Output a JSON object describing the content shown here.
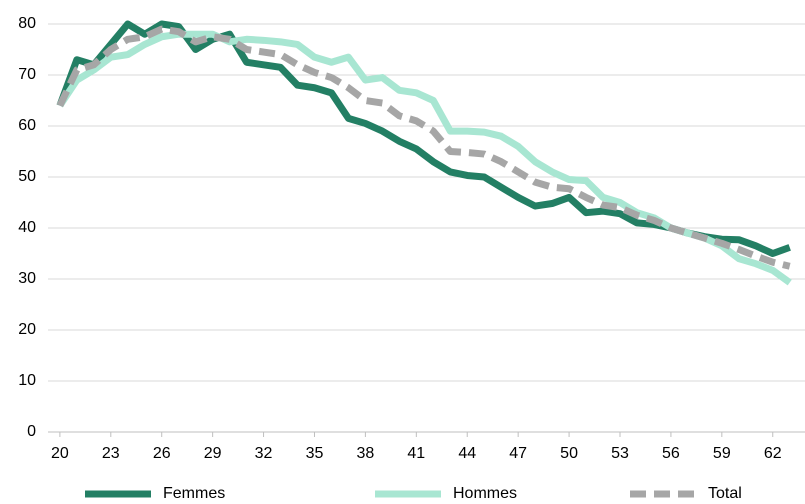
{
  "chart_data": {
    "type": "line",
    "x": [
      20,
      21,
      22,
      23,
      24,
      25,
      26,
      27,
      28,
      29,
      30,
      31,
      32,
      33,
      34,
      35,
      36,
      37,
      38,
      39,
      40,
      41,
      42,
      43,
      44,
      45,
      46,
      47,
      48,
      49,
      50,
      51,
      52,
      53,
      54,
      55,
      56,
      57,
      58,
      59,
      60,
      61,
      62,
      63
    ],
    "series": [
      {
        "name": "Femmes",
        "color": "#237f64",
        "line_style": "solid",
        "values": [
          64,
          73,
          72,
          76,
          80,
          78,
          80,
          79.5,
          75,
          77,
          78,
          72.5,
          72,
          71.5,
          68,
          67.5,
          66.5,
          61.5,
          60.5,
          59,
          57,
          55.5,
          53,
          51,
          50.3,
          50,
          48,
          46,
          44.3,
          44.8,
          46,
          43,
          43.3,
          42.8,
          41,
          40.7,
          40,
          39,
          38.3,
          37.8,
          37.7,
          36.5,
          35,
          36.2
        ]
      },
      {
        "name": "Hommes",
        "color": "#a8e6d2",
        "line_style": "solid",
        "values": [
          64,
          69,
          71,
          73.5,
          74,
          76,
          77.5,
          78,
          78,
          78,
          76.5,
          77,
          76.8,
          76.5,
          76,
          73.5,
          72.5,
          73.5,
          69,
          69.5,
          67,
          66.5,
          65,
          59,
          59,
          58.8,
          58,
          56,
          53,
          51,
          49.5,
          49.3,
          46,
          45,
          43,
          42,
          40,
          39,
          38,
          36.5,
          34,
          33,
          31.7,
          29.3
        ]
      },
      {
        "name": "Total",
        "color": "#a6a6a6",
        "line_style": "dashed",
        "values": [
          64,
          71,
          72,
          75,
          77,
          77.5,
          79,
          78.5,
          76.5,
          77.5,
          77,
          75,
          74.5,
          74,
          72,
          70.5,
          69.5,
          67.5,
          65,
          64.5,
          62,
          61,
          59,
          55,
          54.8,
          54.5,
          53,
          51,
          49,
          48,
          47.7,
          46,
          44.5,
          44,
          42.5,
          41.5,
          40,
          39,
          38,
          37,
          35.8,
          34.5,
          33.3,
          32.5
        ]
      }
    ],
    "xlim": [
      19.3,
      63.9
    ],
    "xticks": [
      20,
      23,
      26,
      29,
      32,
      35,
      38,
      41,
      44,
      47,
      50,
      53,
      56,
      59,
      62
    ],
    "ylim": [
      0,
      80
    ],
    "yticks": [
      0,
      10,
      20,
      30,
      40,
      50,
      60,
      70,
      80
    ],
    "grid": true,
    "legend": "bottom"
  }
}
